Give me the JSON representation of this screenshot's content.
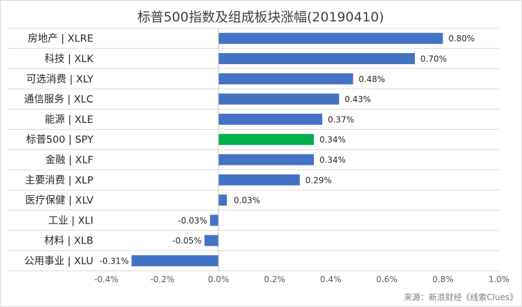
{
  "chart_data": {
    "type": "bar",
    "orientation": "horizontal",
    "title": "标普500指数及组成板块涨幅(20190410)",
    "categories": [
      "房地产 | XLRE",
      "科技 | XLK",
      "可选消费 | XLY",
      "通信服务 | XLC",
      "能源 | XLE",
      "标普500 | SPY",
      "金融 | XLF",
      "主要消费 | XLP",
      "医疗保健 | XLV",
      "工业 | XLI",
      "材料 | XLB",
      "公用事业 | XLU"
    ],
    "values": [
      0.8,
      0.7,
      0.48,
      0.43,
      0.37,
      0.34,
      0.34,
      0.29,
      0.03,
      -0.03,
      -0.05,
      -0.31
    ],
    "value_labels": [
      "0.80%",
      "0.70%",
      "0.48%",
      "0.43%",
      "0.37%",
      "0.34%",
      "0.34%",
      "0.29%",
      "0.03%",
      "-0.03%",
      "-0.05%",
      "-0.31%"
    ],
    "bar_colors": [
      "#4472c4",
      "#4472c4",
      "#4472c4",
      "#4472c4",
      "#4472c4",
      "#00b050",
      "#4472c4",
      "#4472c4",
      "#4472c4",
      "#4472c4",
      "#4472c4",
      "#4472c4"
    ],
    "xlim": [
      -0.4,
      1.0
    ],
    "x_ticks": [
      -0.4,
      -0.2,
      0.0,
      0.2,
      0.4,
      0.6,
      0.8,
      1.0
    ],
    "x_tick_labels": [
      "-0.4%",
      "-0.2%",
      "0.0%",
      "0.2%",
      "0.4%",
      "0.6%",
      "0.8%",
      "1.0%"
    ],
    "xlabel": "",
    "ylabel": "",
    "grid": "horizontal row separators",
    "legend": "none"
  },
  "source_note": "来源：新浪财经《线索Clues》"
}
